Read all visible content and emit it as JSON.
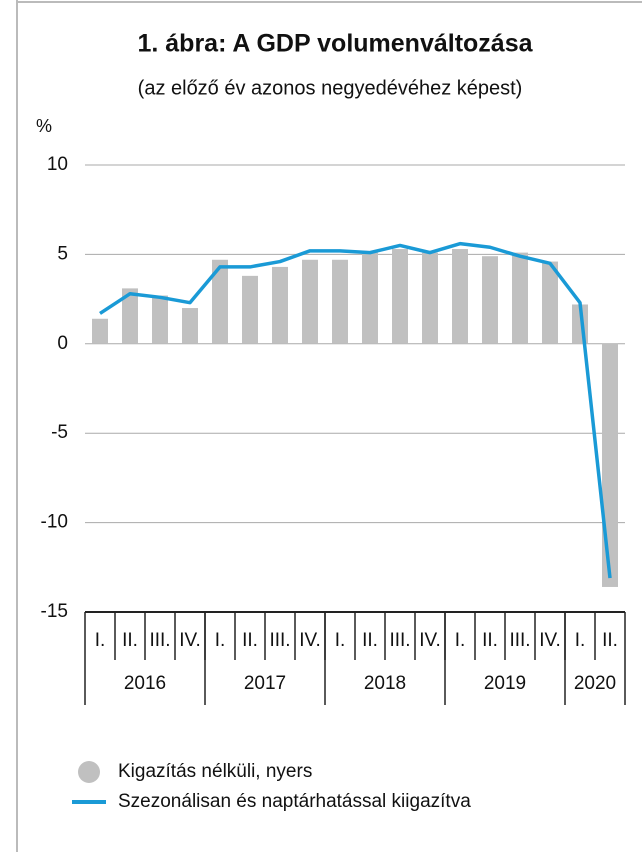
{
  "chart_data": {
    "type": "bar",
    "title": "1. ábra: A GDP volumenváltozása",
    "subtitle": "(az előző év azonos negyedévéhez képest)",
    "y_label": "%",
    "categories": [
      "I.",
      "II.",
      "III.",
      "IV.",
      "I.",
      "II.",
      "III.",
      "IV.",
      "I.",
      "II.",
      "III.",
      "IV.",
      "I.",
      "II.",
      "III.",
      "IV.",
      "I.",
      "II."
    ],
    "groups": [
      {
        "label": "2016",
        "size": 4
      },
      {
        "label": "2017",
        "size": 4
      },
      {
        "label": "2018",
        "size": 4
      },
      {
        "label": "2019",
        "size": 4
      },
      {
        "label": "2020",
        "size": 2
      }
    ],
    "series": [
      {
        "name": "Kigazítás nélküli, nyers",
        "type": "bar",
        "color": "#c0c0c0",
        "values": [
          1.4,
          3.1,
          2.7,
          2.0,
          4.7,
          3.8,
          4.3,
          4.7,
          4.7,
          5.1,
          5.3,
          5.1,
          5.3,
          4.9,
          5.1,
          4.6,
          2.2,
          -13.6
        ]
      },
      {
        "name": "Szezonálisan és naptárhatással kiigazítva",
        "type": "line",
        "color": "#1a9ad6",
        "values": [
          1.7,
          2.8,
          2.6,
          2.3,
          4.3,
          4.3,
          4.6,
          5.2,
          5.2,
          5.1,
          5.5,
          5.1,
          5.6,
          5.4,
          4.9,
          4.5,
          2.3,
          -13.1
        ]
      }
    ],
    "ylim": [
      -15,
      10
    ],
    "yticks": [
      -15,
      -10,
      -5,
      0,
      5,
      10
    ],
    "grid": true
  }
}
